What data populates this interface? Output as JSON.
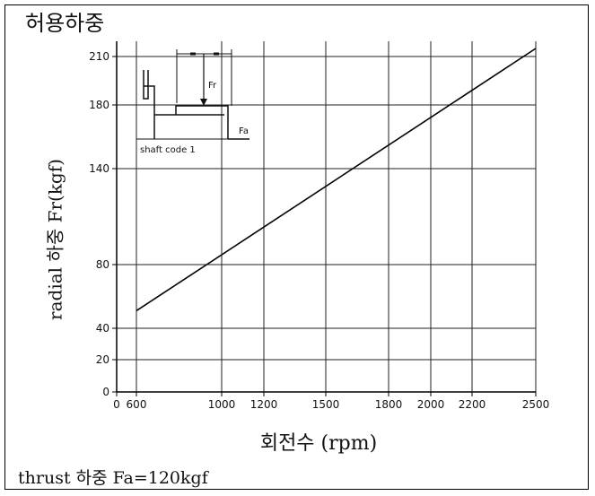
{
  "title": "허용하중",
  "note": "thrust 하중 Fa=120kgf",
  "chart_data": {
    "type": "line",
    "xlabel": "회전수 (rpm)",
    "ylabel": "radial 하중 Fr(kgf)",
    "x_ticks": [
      0,
      600,
      1000,
      1200,
      1500,
      1800,
      2000,
      2200,
      2500
    ],
    "y_ticks": [
      0,
      20,
      40,
      80,
      140,
      180,
      210
    ],
    "xlim": [
      0,
      2500
    ],
    "ylim": [
      0,
      210
    ],
    "grid": true,
    "series": [
      {
        "x": [
          600,
          2500
        ],
        "y": [
          51,
          215
        ]
      }
    ],
    "inset": {
      "label": "shaft code 1",
      "force_radial": "Fr",
      "force_axial": "Fa"
    }
  }
}
